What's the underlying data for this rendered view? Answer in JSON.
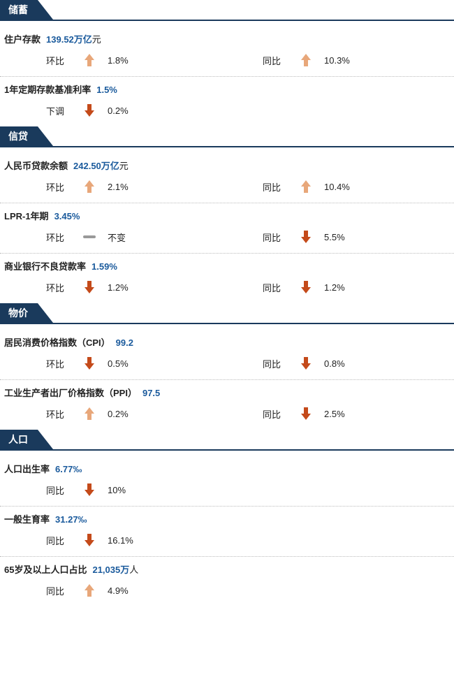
{
  "colors": {
    "header_bg": "#1a3a5c",
    "value_color": "#1a5a9c",
    "arrow_up": "#e8a77a",
    "arrow_down": "#c44a1a",
    "arrow_flat": "#999999",
    "dotted": "#bbbbbb",
    "text": "#222222"
  },
  "sections": [
    {
      "title": "储蓄",
      "metrics": [
        {
          "label": "住户存款",
          "value": "139.52万亿",
          "unit": "元",
          "changes": [
            {
              "label": "环比",
              "dir": "up",
              "pct": "1.8%"
            },
            {
              "label": "同比",
              "dir": "up",
              "pct": "10.3%"
            }
          ]
        },
        {
          "label": "1年定期存款基准利率",
          "value": "1.5%",
          "unit": "",
          "changes": [
            {
              "label": "下调",
              "dir": "down",
              "pct": "0.2%"
            }
          ]
        }
      ]
    },
    {
      "title": "信贷",
      "metrics": [
        {
          "label": "人民币贷款余额",
          "value": "242.50万亿",
          "unit": "元",
          "changes": [
            {
              "label": "环比",
              "dir": "up",
              "pct": "2.1%"
            },
            {
              "label": "同比",
              "dir": "up",
              "pct": "10.4%"
            }
          ]
        },
        {
          "label": "LPR-1年期",
          "value": "3.45%",
          "unit": "",
          "changes": [
            {
              "label": "环比",
              "dir": "flat",
              "pct": "不变"
            },
            {
              "label": "同比",
              "dir": "down",
              "pct": "5.5%"
            }
          ]
        },
        {
          "label": "商业银行不良贷款率",
          "value": "1.59%",
          "unit": "",
          "changes": [
            {
              "label": "环比",
              "dir": "down",
              "pct": "1.2%"
            },
            {
              "label": "同比",
              "dir": "down",
              "pct": "1.2%"
            }
          ]
        }
      ]
    },
    {
      "title": "物价",
      "metrics": [
        {
          "label": "居民消费价格指数（CPI）",
          "value": "99.2",
          "unit": "",
          "changes": [
            {
              "label": "环比",
              "dir": "down",
              "pct": "0.5%"
            },
            {
              "label": "同比",
              "dir": "down",
              "pct": "0.8%"
            }
          ]
        },
        {
          "label": "工业生产者出厂价格指数（PPI）",
          "value": "97.5",
          "unit": "",
          "changes": [
            {
              "label": "环比",
              "dir": "up",
              "pct": "0.2%"
            },
            {
              "label": "同比",
              "dir": "down",
              "pct": "2.5%"
            }
          ]
        }
      ]
    },
    {
      "title": "人口",
      "metrics": [
        {
          "label": "人口出生率",
          "value": "6.77‰",
          "unit": "",
          "changes": [
            {
              "label": "同比",
              "dir": "down",
              "pct": "10%"
            }
          ]
        },
        {
          "label": "一般生育率",
          "value": "31.27‰",
          "unit": "",
          "changes": [
            {
              "label": "同比",
              "dir": "down",
              "pct": "16.1%"
            }
          ]
        },
        {
          "label": "65岁及以上人口占比",
          "value": "21,035万",
          "unit": "人",
          "changes": [
            {
              "label": "同比",
              "dir": "up",
              "pct": "4.9%"
            }
          ]
        }
      ]
    }
  ]
}
